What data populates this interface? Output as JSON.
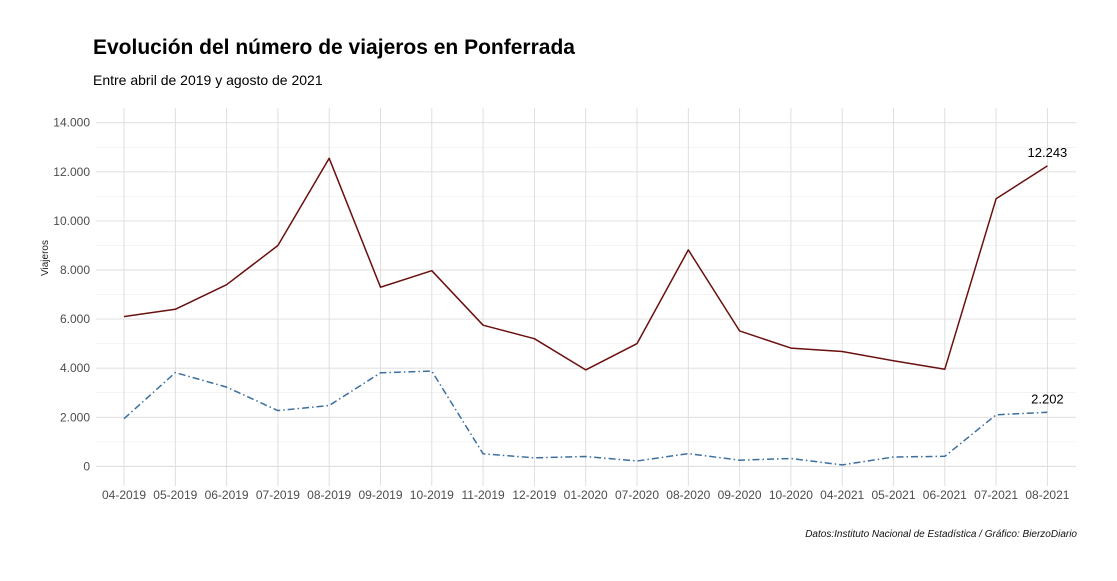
{
  "title": "Evolución del número de viajeros en Ponferrada",
  "subtitle": "Entre abril de 2019 y agosto de 2021",
  "caption": "Datos:Instituto Nacional de Estadística / Gráfico: BierzoDiario",
  "chart_data": {
    "type": "line",
    "title": "Evolución del número de viajeros en Ponferrada",
    "subtitle": "Entre abril de 2019 y agosto de 2021",
    "ylabel": "Viajeros",
    "xlabel": "",
    "ylim": [
      -800,
      14600
    ],
    "yticks": [
      0,
      2000,
      4000,
      6000,
      8000,
      10000,
      12000,
      14000
    ],
    "ytick_labels": [
      "0",
      "2.000",
      "4.000",
      "6.000",
      "8.000",
      "10.000",
      "12.000",
      "14.000"
    ],
    "grid": true,
    "categories": [
      "04-2019",
      "05-2019",
      "06-2019",
      "07-2019",
      "08-2019",
      "09-2019",
      "10-2019",
      "11-2019",
      "12-2019",
      "01-2020",
      "07-2020",
      "08-2020",
      "09-2020",
      "10-2020",
      "04-2021",
      "05-2021",
      "06-2021",
      "07-2021",
      "08-2021"
    ],
    "series": [
      {
        "color": "#6b0f0f",
        "dash": "solid",
        "values": [
          6100,
          6400,
          7400,
          9000,
          12550,
          7300,
          7970,
          5750,
          5200,
          3930,
          5000,
          8820,
          5520,
          4820,
          4680,
          4300,
          3960,
          10900,
          12243
        ],
        "end_label": "12.243"
      },
      {
        "color": "#3b6fa0",
        "dash": "dashdot",
        "values": [
          1940,
          3820,
          3230,
          2270,
          2480,
          3810,
          3880,
          510,
          350,
          400,
          220,
          520,
          250,
          320,
          60,
          380,
          410,
          2100,
          2202
        ],
        "end_label": "2.202"
      }
    ]
  }
}
